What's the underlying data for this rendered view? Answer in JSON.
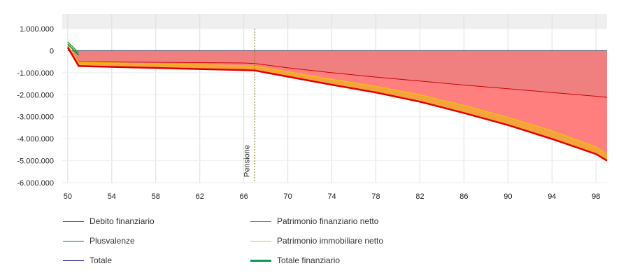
{
  "chart_data": {
    "type": "area",
    "x_ticks": [
      50,
      54,
      58,
      62,
      66,
      70,
      74,
      78,
      82,
      86,
      90,
      94,
      98
    ],
    "y_ticks": [
      1000000,
      0,
      -1000000,
      -2000000,
      -3000000,
      -4000000,
      -5000000,
      -6000000
    ],
    "y_tick_labels": [
      "1.000.000",
      "0",
      "-1.000.000",
      "-2.000.000",
      "-3.000.000",
      "-4.000.000",
      "-5.000.000",
      "-6.000.000"
    ],
    "xlim": [
      49.5,
      99
    ],
    "ylim": [
      -6000000,
      1000000
    ],
    "grid": true,
    "annotation": {
      "label": "Pensione",
      "x": 67
    },
    "legend_position": "bottom",
    "series": [
      {
        "name": "Debito finanziario",
        "color": "#cc0000",
        "x": [
          50,
          51,
          66,
          67,
          70,
          74,
          78,
          82,
          86,
          90,
          94,
          98,
          99
        ],
        "values": [
          200000,
          -500000,
          -560000,
          -580000,
          -780000,
          -1000000,
          -1200000,
          -1380000,
          -1560000,
          -1730000,
          -1900000,
          -2070000,
          -2120000
        ]
      },
      {
        "name": "Patrimonio finanziario netto",
        "color": "#2ca02c",
        "x": [
          50,
          51
        ],
        "values": [
          400000,
          -100000
        ]
      },
      {
        "name": "Plusvalenze",
        "color": "#0a7a55",
        "x": [
          50,
          51
        ],
        "values": [
          300000,
          -200000
        ]
      },
      {
        "name": "Patrimonio immobiliare netto",
        "color": "#f0c400",
        "x": [
          50,
          51,
          66,
          67,
          70,
          74,
          78,
          82,
          86,
          90,
          94,
          98,
          99
        ],
        "values": [
          250000,
          -520000,
          -680000,
          -700000,
          -950000,
          -1300000,
          -1620000,
          -2000000,
          -2480000,
          -3030000,
          -3640000,
          -4370000,
          -4720000
        ]
      },
      {
        "name": "Totale",
        "color": "#000080",
        "x": [
          50,
          99
        ],
        "values": [
          0,
          0
        ]
      },
      {
        "name": "Totale finanziario",
        "color": "#e00000",
        "x": [
          50,
          51,
          66,
          67,
          70,
          74,
          78,
          82,
          86,
          90,
          94,
          98,
          99
        ],
        "values": [
          150000,
          -700000,
          -880000,
          -900000,
          -1180000,
          -1550000,
          -1900000,
          -2320000,
          -2830000,
          -3380000,
          -4010000,
          -4700000,
          -5000000
        ]
      }
    ]
  },
  "legend": {
    "items": [
      {
        "label": "Debito finanziario",
        "color": "#cc3333"
      },
      {
        "label": "Patrimonio finanziario netto",
        "color": "#33aa44"
      },
      {
        "label": "Plusvalenze",
        "color": "#0a7a55"
      },
      {
        "label": "Patrimonio immobiliare netto",
        "color": "#f0c400"
      },
      {
        "label": "Totale",
        "color": "#000080"
      },
      {
        "label": "Totale finanziario",
        "color": "#0a9a5a"
      }
    ]
  }
}
